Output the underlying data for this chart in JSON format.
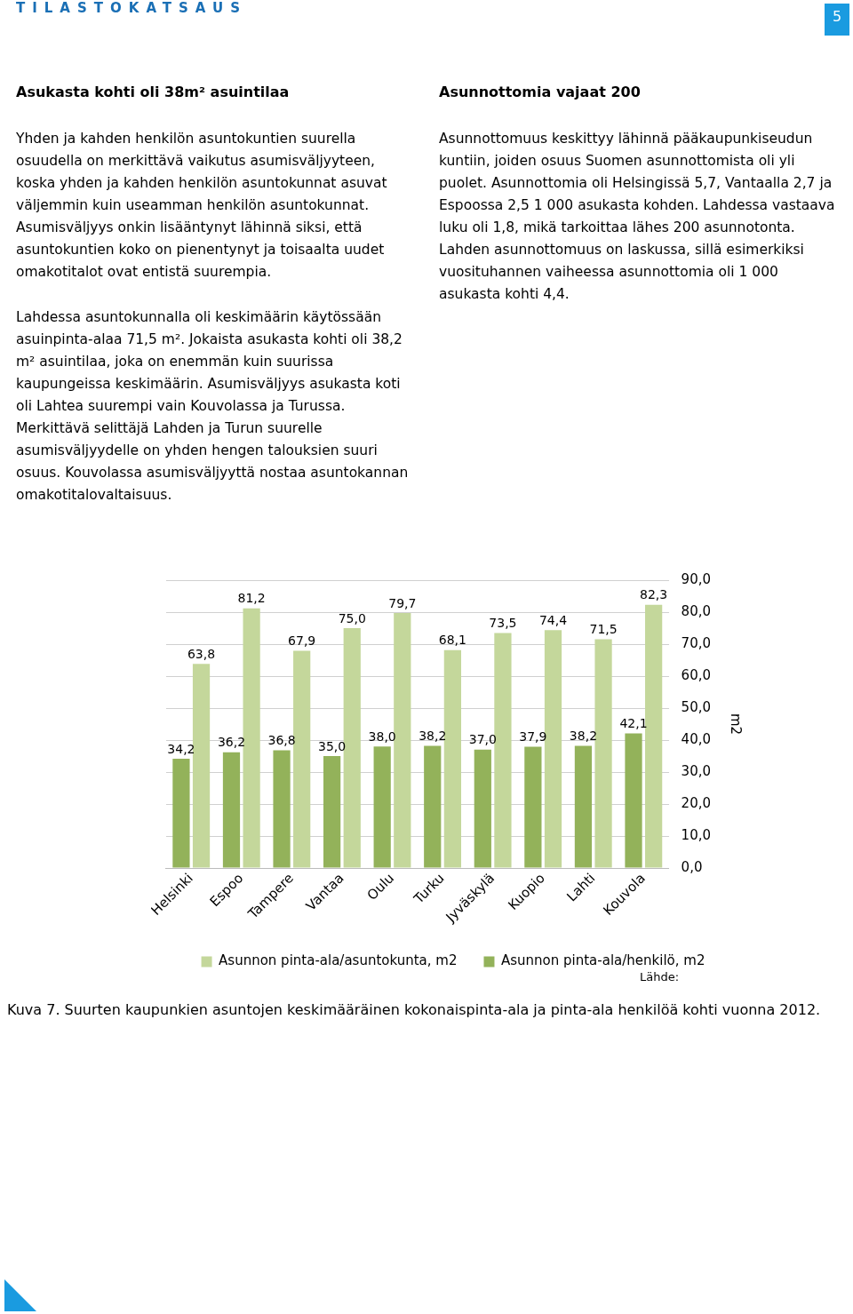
{
  "chart_data": {
    "type": "bar",
    "categories": [
      "Helsinki",
      "Espoo",
      "Tampere",
      "Vantaa",
      "Oulu",
      "Turku",
      "Jyväskylä",
      "Kuopio",
      "Lahti",
      "Kouvola"
    ],
    "series": [
      {
        "name": "Asunnon pinta-ala/asuntokunta, m2",
        "color": "#c4d79b",
        "values": [
          63.8,
          81.2,
          67.9,
          75.0,
          79.7,
          68.1,
          73.5,
          74.4,
          71.5,
          82.3
        ],
        "value_labels": [
          "63,8",
          "81,2",
          "67,9",
          "75,0",
          "79,7",
          "68,1",
          "73,5",
          "74,4",
          "71,5",
          "82,3"
        ]
      },
      {
        "name": "Asunnon pinta-ala/henkilö, m2",
        "color": "#93b25a",
        "values": [
          34.2,
          36.2,
          36.8,
          35.0,
          38.0,
          38.2,
          37.0,
          37.9,
          38.2,
          42.1
        ],
        "value_labels": [
          "34,2",
          "36,2",
          "36,8",
          "35,0",
          "38,0",
          "38,2",
          "37,0",
          "37,9",
          "38,2",
          "42,1"
        ]
      }
    ],
    "ylabel": "m2",
    "ylim": [
      0,
      90
    ],
    "yticks": [
      {
        "value": 0,
        "label": "0,0"
      },
      {
        "value": 10,
        "label": "10,0"
      },
      {
        "value": 20,
        "label": "20,0"
      },
      {
        "value": 30,
        "label": "30,0"
      },
      {
        "value": 40,
        "label": "40,0"
      },
      {
        "value": 50,
        "label": "50,0"
      },
      {
        "value": 60,
        "label": "60,0"
      },
      {
        "value": 70,
        "label": "70,0"
      },
      {
        "value": 80,
        "label": "80,0"
      },
      {
        "value": 90,
        "label": "90,0"
      }
    ],
    "grid": "y",
    "legend": "bottom",
    "annotations": [
      "TILASTOKATSAUS",
      "5",
      "Asukasta kohti oli 38m² asuintilaa",
      "Yhden ja kahden henkilön asuntokuntien suurella osuudella on merkittävä vaikutus asumisväljyyteen, koska yhden ja kahden henkilön asuntokunnat asuvat väljemmin kuin useamman henkilön asuntokunnat. Asumisväljyys onkin lisääntynyt lähinnä siksi, että asuntokuntien koko on pienentynyt ja toisaalta uudet omakotitalot ovat entistä suurempia.",
      "Lahdessa asuntokunnalla oli keskimäärin käytössään asuinpinta-alaa 71,5 m². Jokaista asukasta kohti oli 38,2 m² asuintilaa, joka on enemmän kuin suurissa kaupungeissa keskimäärin. Asumisväljyys asukasta koti oli Lahtea suurempi vain Kouvolassa ja Turussa. Merkittävä selittäjä Lahden ja Turun suurelle asumisväljyydelle on yhden hengen talouksien suuri osuus. Kouvolassa asumisväljyyttä nostaa asuntokannan omakotitalovaltaisuus.",
      "Asunnottomia vajaat 200",
      "Asunnottomuus keskittyy lähinnä pääkaupunkiseudun kuntiin, joiden osuus Suomen asunnottomista oli yli puolet. Asunnottomia oli Helsingissä 5,7, Vantaalla 2,7 ja Espoossa 2,5 1 000 asukasta kohden. Lahdessa vastaava luku oli 1,8, mikä tarkoittaa lähes 200 asunnotonta. Lahden asunnottomuus on laskussa, sillä esimerkiksi vuosituhannen vaiheessa asunnottomia oli 1 000 asukasta kohti 4,4.",
      "Lähde:",
      "Kuva 7. Suurten kaupunkien asuntojen keskimääräinen kokonaispinta-ala ja pinta-ala henkilöä kohti vuonna 2012."
    ]
  }
}
